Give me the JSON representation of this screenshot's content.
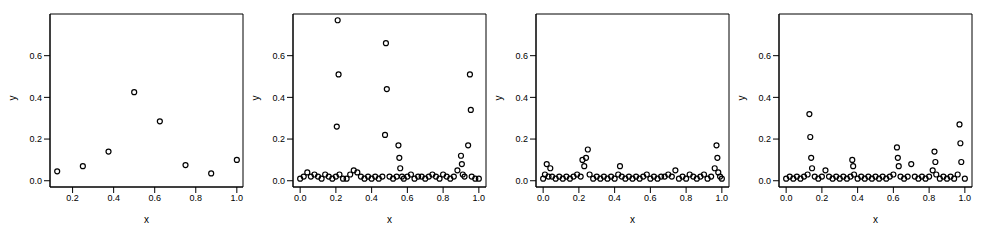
{
  "chart_data": [
    {
      "type": "scatter",
      "x_label": "x",
      "y_label": "y",
      "color": "#000000",
      "marker": "circle",
      "xlim": [
        0.09,
        1.03
      ],
      "ylim": [
        -0.03,
        0.8
      ],
      "xticks": [
        0.2,
        0.4,
        0.6,
        0.8,
        {
          "value": 1,
          "label": "1.0"
        }
      ],
      "yticks": [
        {
          "value": 0,
          "label": "0.0"
        },
        0.2,
        0.4,
        0.6
      ],
      "x": [
        0.125,
        0.25,
        0.375,
        0.5,
        0.625,
        0.75,
        0.875,
        1.0
      ],
      "values": [
        0.045,
        0.07,
        0.14,
        0.425,
        0.285,
        0.075,
        0.035,
        0.1
      ]
    },
    {
      "type": "scatter",
      "x_label": "x",
      "y_label": "y",
      "color": "#000000",
      "marker": "circle",
      "xlim": [
        -0.04,
        1.04
      ],
      "ylim": [
        -0.03,
        0.8
      ],
      "xticks": [
        {
          "value": 0,
          "label": "0.0"
        },
        0.2,
        0.4,
        0.6,
        0.8,
        {
          "value": 1,
          "label": "1.0"
        }
      ],
      "yticks": [
        {
          "value": 0,
          "label": "0.0"
        },
        0.2,
        0.4,
        0.6
      ],
      "x": [
        0.0,
        0.02,
        0.04,
        0.06,
        0.08,
        0.1,
        0.12,
        0.14,
        0.16,
        0.18,
        0.2,
        0.21,
        0.215,
        0.205,
        0.22,
        0.24,
        0.26,
        0.28,
        0.3,
        0.32,
        0.34,
        0.36,
        0.38,
        0.4,
        0.42,
        0.44,
        0.46,
        0.475,
        0.48,
        0.485,
        0.5,
        0.52,
        0.54,
        0.55,
        0.555,
        0.56,
        0.57,
        0.58,
        0.6,
        0.62,
        0.64,
        0.66,
        0.68,
        0.7,
        0.72,
        0.74,
        0.76,
        0.78,
        0.8,
        0.82,
        0.84,
        0.86,
        0.88,
        0.9,
        0.905,
        0.91,
        0.92,
        0.94,
        0.95,
        0.955,
        0.96,
        0.98,
        1.0
      ],
      "values": [
        0.01,
        0.02,
        0.04,
        0.02,
        0.03,
        0.02,
        0.01,
        0.03,
        0.02,
        0.01,
        0.02,
        0.77,
        0.51,
        0.26,
        0.03,
        0.01,
        0.01,
        0.03,
        0.05,
        0.04,
        0.02,
        0.01,
        0.02,
        0.01,
        0.02,
        0.01,
        0.02,
        0.22,
        0.66,
        0.44,
        0.02,
        0.01,
        0.02,
        0.17,
        0.11,
        0.06,
        0.02,
        0.01,
        0.02,
        0.03,
        0.01,
        0.02,
        0.02,
        0.01,
        0.02,
        0.03,
        0.02,
        0.01,
        0.03,
        0.02,
        0.01,
        0.02,
        0.05,
        0.12,
        0.08,
        0.03,
        0.02,
        0.17,
        0.51,
        0.34,
        0.02,
        0.01,
        0.01
      ]
    },
    {
      "type": "scatter",
      "x_label": "x",
      "y_label": "y",
      "color": "#000000",
      "marker": "circle",
      "xlim": [
        -0.04,
        1.04
      ],
      "ylim": [
        -0.03,
        0.8
      ],
      "xticks": [
        {
          "value": 0,
          "label": "0.0"
        },
        0.2,
        0.4,
        0.6,
        0.8,
        {
          "value": 1,
          "label": "1.0"
        }
      ],
      "yticks": [
        {
          "value": 0,
          "label": "0.0"
        },
        0.2,
        0.4,
        0.6
      ],
      "x": [
        0.0,
        0.01,
        0.02,
        0.03,
        0.04,
        0.05,
        0.07,
        0.09,
        0.11,
        0.13,
        0.15,
        0.17,
        0.19,
        0.21,
        0.22,
        0.23,
        0.24,
        0.25,
        0.26,
        0.28,
        0.3,
        0.32,
        0.34,
        0.36,
        0.38,
        0.4,
        0.42,
        0.43,
        0.44,
        0.46,
        0.48,
        0.5,
        0.52,
        0.54,
        0.56,
        0.58,
        0.6,
        0.62,
        0.64,
        0.66,
        0.68,
        0.7,
        0.72,
        0.74,
        0.76,
        0.78,
        0.8,
        0.82,
        0.84,
        0.86,
        0.88,
        0.9,
        0.92,
        0.94,
        0.96,
        0.97,
        0.975,
        0.98,
        0.99,
        1.0
      ],
      "values": [
        0.01,
        0.03,
        0.08,
        0.02,
        0.06,
        0.02,
        0.01,
        0.02,
        0.01,
        0.02,
        0.01,
        0.02,
        0.03,
        0.02,
        0.1,
        0.07,
        0.11,
        0.15,
        0.03,
        0.01,
        0.02,
        0.01,
        0.02,
        0.01,
        0.02,
        0.01,
        0.03,
        0.07,
        0.02,
        0.01,
        0.02,
        0.01,
        0.02,
        0.01,
        0.02,
        0.03,
        0.01,
        0.02,
        0.01,
        0.02,
        0.02,
        0.03,
        0.02,
        0.05,
        0.01,
        0.02,
        0.01,
        0.03,
        0.02,
        0.01,
        0.02,
        0.03,
        0.01,
        0.02,
        0.06,
        0.17,
        0.11,
        0.04,
        0.02,
        0.01
      ]
    },
    {
      "type": "scatter",
      "x_label": "x",
      "y_label": "y",
      "color": "#000000",
      "marker": "circle",
      "xlim": [
        -0.04,
        1.04
      ],
      "ylim": [
        -0.03,
        0.8
      ],
      "xticks": [
        {
          "value": 0,
          "label": "0.0"
        },
        0.2,
        0.4,
        0.6,
        0.8,
        {
          "value": 1,
          "label": "1.0"
        }
      ],
      "yticks": [
        {
          "value": 0,
          "label": "0.0"
        },
        0.2,
        0.4,
        0.6
      ],
      "x": [
        0.0,
        0.02,
        0.04,
        0.06,
        0.08,
        0.1,
        0.12,
        0.13,
        0.135,
        0.14,
        0.145,
        0.16,
        0.18,
        0.2,
        0.22,
        0.24,
        0.26,
        0.28,
        0.3,
        0.32,
        0.34,
        0.36,
        0.37,
        0.375,
        0.38,
        0.4,
        0.42,
        0.44,
        0.46,
        0.48,
        0.5,
        0.52,
        0.54,
        0.56,
        0.58,
        0.6,
        0.62,
        0.625,
        0.63,
        0.64,
        0.66,
        0.68,
        0.7,
        0.72,
        0.74,
        0.76,
        0.78,
        0.8,
        0.82,
        0.83,
        0.835,
        0.84,
        0.86,
        0.88,
        0.9,
        0.92,
        0.94,
        0.96,
        0.97,
        0.975,
        0.98,
        1.0
      ],
      "values": [
        0.01,
        0.02,
        0.01,
        0.02,
        0.01,
        0.02,
        0.03,
        0.32,
        0.21,
        0.11,
        0.06,
        0.02,
        0.01,
        0.02,
        0.05,
        0.02,
        0.01,
        0.02,
        0.01,
        0.02,
        0.01,
        0.02,
        0.1,
        0.07,
        0.03,
        0.01,
        0.02,
        0.01,
        0.02,
        0.01,
        0.02,
        0.01,
        0.02,
        0.01,
        0.02,
        0.03,
        0.16,
        0.11,
        0.07,
        0.02,
        0.01,
        0.02,
        0.08,
        0.02,
        0.01,
        0.02,
        0.01,
        0.02,
        0.05,
        0.14,
        0.09,
        0.03,
        0.01,
        0.02,
        0.01,
        0.02,
        0.01,
        0.03,
        0.27,
        0.18,
        0.09,
        0.01
      ]
    }
  ]
}
